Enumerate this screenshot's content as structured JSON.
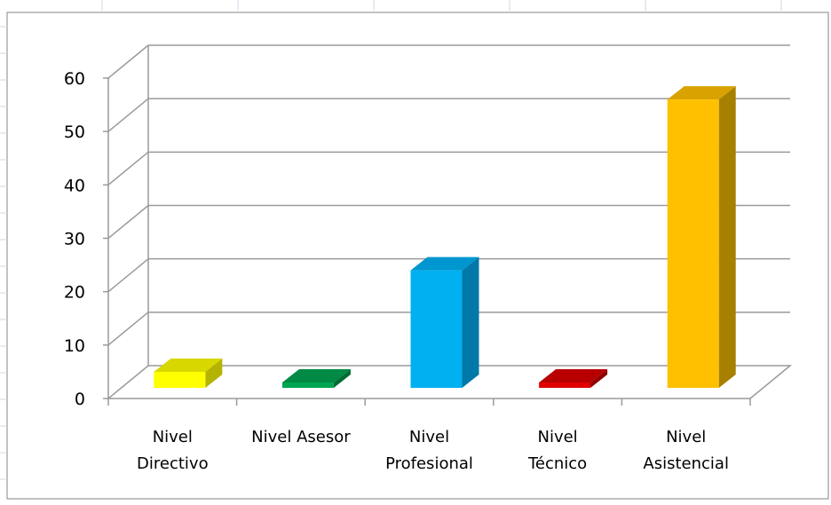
{
  "chart_data": {
    "type": "bar",
    "categories": [
      [
        "Nivel",
        "Directivo"
      ],
      [
        "Nivel Asesor"
      ],
      [
        "Nivel",
        "Profesional"
      ],
      [
        "Nivel",
        "Técnico"
      ],
      [
        "Nivel",
        "Asistencial"
      ]
    ],
    "values": [
      3,
      1,
      22,
      1,
      54
    ],
    "colors": [
      "#ffff00",
      "#00a651",
      "#00b0f0",
      "#e00000",
      "#ffc000"
    ],
    "side_colors": [
      "#b3b300",
      "#006b33",
      "#0078a8",
      "#900000",
      "#a88000"
    ],
    "top_colors": [
      "#d8d800",
      "#008a44",
      "#0096cf",
      "#b80000",
      "#d9a200"
    ],
    "yticks": [
      "0",
      "10",
      "20",
      "30",
      "40",
      "50",
      "60"
    ],
    "ylim": [
      0,
      60
    ],
    "grid": true,
    "title": "",
    "xlabel": "",
    "ylabel": ""
  }
}
